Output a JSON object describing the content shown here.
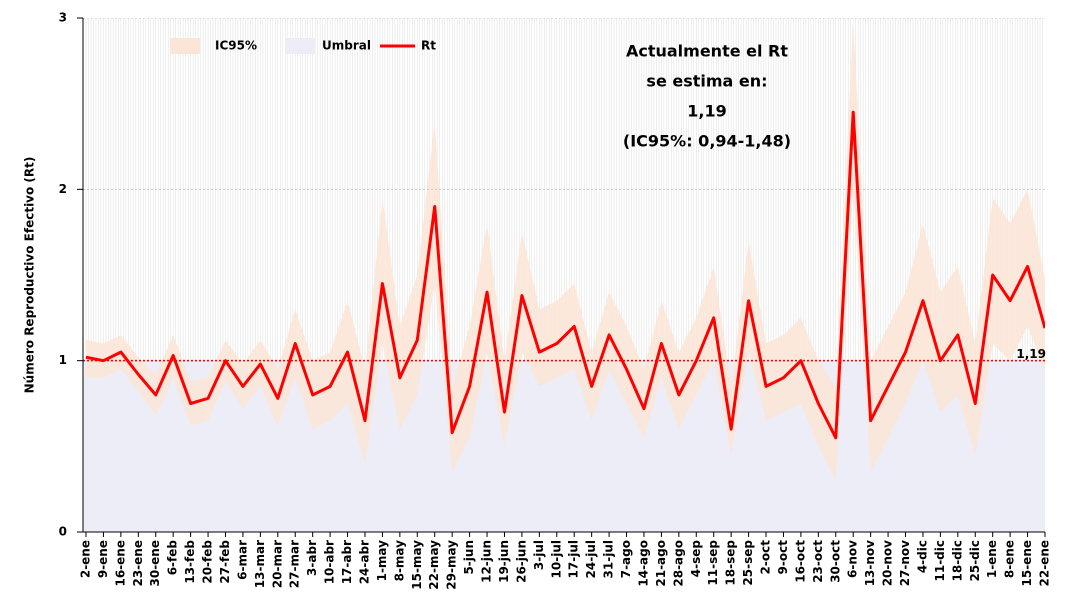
{
  "chart_data": {
    "type": "line",
    "y_label": "Número Reproductivo Efectivo (Rt)",
    "categories": [
      "2-ene",
      "9-ene",
      "16-ene",
      "23-ene",
      "30-ene",
      "6-feb",
      "13-feb",
      "20-feb",
      "27-feb",
      "6-mar",
      "13-mar",
      "20-mar",
      "27-mar",
      "3-abr",
      "10-abr",
      "17-abr",
      "24-abr",
      "1-may",
      "8-may",
      "15-may",
      "22-may",
      "29-may",
      "5-jun",
      "12-jun",
      "19-jun",
      "26-jun",
      "3-jul",
      "10-jul",
      "17-jul",
      "24-jul",
      "31-jul",
      "7-ago",
      "14-ago",
      "21-ago",
      "28-ago",
      "4-sep",
      "11-sep",
      "18-sep",
      "25-sep",
      "2-oct",
      "9-oct",
      "16-oct",
      "23-oct",
      "30-oct",
      "6-nov",
      "13-nov",
      "20-nov",
      "27-nov",
      "4-dic",
      "11-dic",
      "18-dic",
      "25-dic",
      "1-ene",
      "8-ene",
      "15-ene",
      "22-ene"
    ],
    "ylim": [
      0,
      3
    ],
    "yticks": [
      0,
      1,
      2,
      3
    ],
    "grid": true,
    "legend_position": "top-left",
    "band": {
      "name": "IC95%",
      "color": "#fbe5d6",
      "lower": [
        0.9,
        0.9,
        0.95,
        0.82,
        0.68,
        0.9,
        0.62,
        0.65,
        0.88,
        0.72,
        0.85,
        0.62,
        0.9,
        0.6,
        0.65,
        0.75,
        0.4,
        1.1,
        0.6,
        0.8,
        1.45,
        0.35,
        0.55,
        1.05,
        0.5,
        1.05,
        0.85,
        0.9,
        0.95,
        0.65,
        0.95,
        0.75,
        0.55,
        0.9,
        0.6,
        0.8,
        1.0,
        0.45,
        1.05,
        0.65,
        0.7,
        0.75,
        0.5,
        0.3,
        2.0,
        0.35,
        0.55,
        0.75,
        1.0,
        0.7,
        0.8,
        0.45,
        1.1,
        1.0,
        1.2,
        0.94
      ],
      "upper": [
        1.12,
        1.1,
        1.15,
        1.02,
        0.92,
        1.15,
        0.88,
        0.9,
        1.12,
        0.98,
        1.12,
        0.95,
        1.3,
        1.0,
        1.05,
        1.35,
        0.95,
        1.95,
        1.2,
        1.5,
        2.4,
        0.85,
        1.2,
        1.8,
        1.0,
        1.75,
        1.3,
        1.35,
        1.45,
        1.05,
        1.4,
        1.2,
        0.95,
        1.35,
        1.05,
        1.25,
        1.55,
        0.85,
        1.7,
        1.1,
        1.15,
        1.25,
        1.0,
        0.85,
        3.0,
        1.0,
        1.2,
        1.4,
        1.8,
        1.4,
        1.55,
        1.1,
        1.95,
        1.8,
        2.0,
        1.48
      ]
    },
    "threshold": {
      "name": "Umbral",
      "color": "#ededf7",
      "line_color": "#ff0000",
      "value": 1
    },
    "series": [
      {
        "name": "Rt",
        "color": "#ff0000",
        "values": [
          1.02,
          1.0,
          1.05,
          0.92,
          0.8,
          1.03,
          0.75,
          0.78,
          1.0,
          0.85,
          0.98,
          0.78,
          1.1,
          0.8,
          0.85,
          1.05,
          0.65,
          1.45,
          0.9,
          1.12,
          1.9,
          0.58,
          0.85,
          1.4,
          0.7,
          1.38,
          1.05,
          1.1,
          1.2,
          0.85,
          1.15,
          0.95,
          0.72,
          1.1,
          0.8,
          1.0,
          1.25,
          0.6,
          1.35,
          0.85,
          0.9,
          1.0,
          0.75,
          0.55,
          2.45,
          0.65,
          0.85,
          1.05,
          1.35,
          1.0,
          1.15,
          0.75,
          1.5,
          1.35,
          1.55,
          1.19
        ],
        "last_label": "1,19"
      }
    ],
    "annotation": [
      "Actualmente el Rt",
      "se estima en:",
      "1,19",
      "(IC95%: 0,94-1,48)"
    ],
    "annotation_color": "#ff0000"
  }
}
